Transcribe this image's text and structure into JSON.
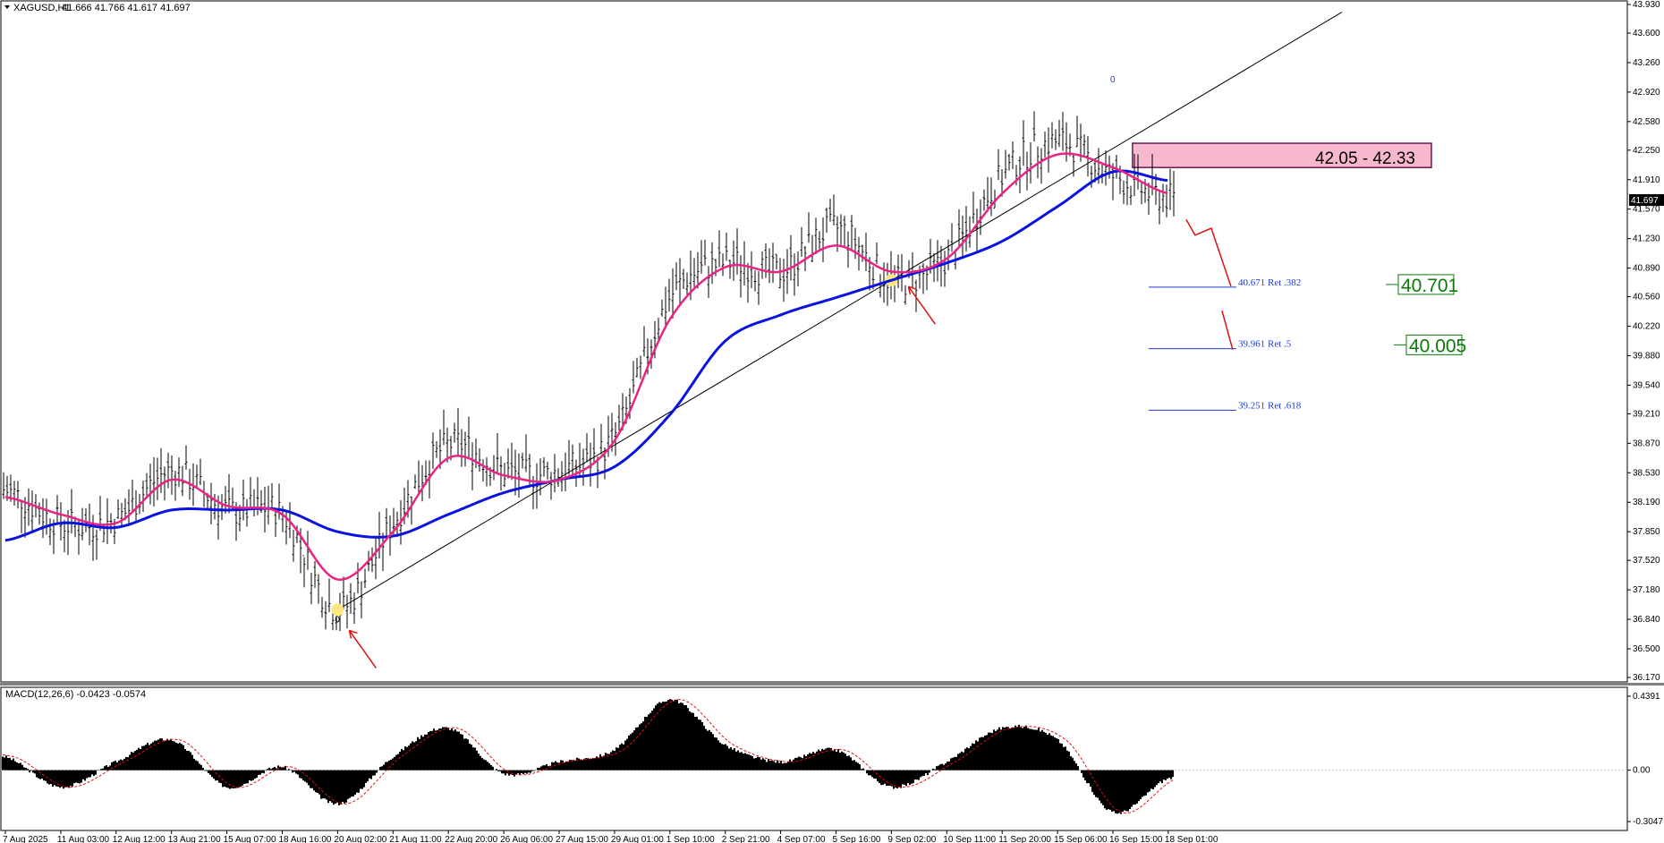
{
  "header": {
    "symbol": "XAGUSD,H1",
    "ohlc": "41.666 41.766 41.617 41.697",
    "dropdown_icon": "triangle-down-icon"
  },
  "colors": {
    "price_bars": "#000000",
    "ema_fast": "#ea2385",
    "ma_slow": "#0a14e0",
    "fib_lines": "#1f3bd6",
    "projection": "#e01010",
    "zone_fill": "#f6b7cf",
    "zone_border": "#6a1a55",
    "level_text": "#0a7a0a",
    "swing_marker": "#ffe680"
  },
  "chart_data": [
    {
      "type": "line",
      "pane": "main",
      "symbol": "XAGUSD",
      "timeframe": "H1",
      "ylim": [
        36.17,
        43.93
      ],
      "y_ticks": [
        "43.930",
        "43.600",
        "43.260",
        "42.920",
        "42.580",
        "42.250",
        "41.910",
        "41.570",
        "41.230",
        "40.890",
        "40.560",
        "40.220",
        "39.880",
        "39.540",
        "39.210",
        "38.870",
        "38.530",
        "38.190",
        "37.850",
        "37.520",
        "37.180",
        "36.840",
        "36.500",
        "36.170"
      ],
      "x_ticks": [
        "7 Aug 2025",
        "11 Aug 03:00",
        "12 Aug 12:00",
        "13 Aug 21:00",
        "15 Aug 07:00",
        "18 Aug 16:00",
        "20 Aug 02:00",
        "21 Aug 11:00",
        "22 Aug 20:00",
        "26 Aug 06:00",
        "27 Aug 15:00",
        "29 Aug 01:00",
        "1 Sep 10:00",
        "2 Sep 21:00",
        "4 Sep 07:00",
        "5 Sep 16:00",
        "9 Sep 02:00",
        "10 Sep 11:00",
        "11 Sep 20:00",
        "15 Sep 06:00",
        "16 Sep 15:00",
        "18 Sep 01:00"
      ],
      "current_price_label": "41.697",
      "series": [
        {
          "x": [
            "7 Aug 2025",
            "11 Aug 03:00",
            "12 Aug 12:00",
            "13 Aug 21:00",
            "15 Aug 07:00",
            "18 Aug 16:00",
            "20 Aug 02:00",
            "21 Aug 11:00",
            "22 Aug 20:00",
            "26 Aug 06:00",
            "27 Aug 15:00",
            "29 Aug 01:00",
            "1 Sep 10:00",
            "2 Sep 21:00",
            "4 Sep 07:00",
            "5 Sep 16:00",
            "9 Sep 02:00",
            "10 Sep 11:00",
            "11 Sep 20:00",
            "15 Sep 06:00",
            "16 Sep 15:00",
            "18 Sep 01:00"
          ],
          "values": [
            38.33,
            37.95,
            38.0,
            38.55,
            38.1,
            38.05,
            36.95,
            37.95,
            38.85,
            38.55,
            38.55,
            38.95,
            40.55,
            40.95,
            40.85,
            41.35,
            40.75,
            41.0,
            41.95,
            42.35,
            41.95,
            41.7
          ]
        },
        {
          "x": [
            "7 Aug 2025",
            "11 Aug 03:00",
            "12 Aug 12:00",
            "13 Aug 21:00",
            "15 Aug 07:00",
            "18 Aug 16:00",
            "20 Aug 02:00",
            "21 Aug 11:00",
            "22 Aug 20:00",
            "26 Aug 06:00",
            "27 Aug 15:00",
            "29 Aug 01:00",
            "1 Sep 10:00",
            "2 Sep 21:00",
            "4 Sep 07:00",
            "5 Sep 16:00",
            "9 Sep 02:00",
            "10 Sep 11:00",
            "11 Sep 20:00",
            "15 Sep 06:00",
            "16 Sep 15:00",
            "18 Sep 01:00"
          ],
          "values": [
            38.25,
            38.05,
            37.95,
            38.45,
            38.15,
            38.05,
            37.3,
            37.85,
            38.7,
            38.5,
            38.45,
            38.9,
            40.3,
            40.9,
            40.85,
            41.15,
            40.85,
            41.0,
            41.75,
            42.2,
            42.05,
            41.75
          ]
        },
        {
          "x": [
            "7 Aug 2025",
            "11 Aug 03:00",
            "12 Aug 12:00",
            "13 Aug 21:00",
            "15 Aug 07:00",
            "18 Aug 16:00",
            "20 Aug 02:00",
            "21 Aug 11:00",
            "22 Aug 20:00",
            "26 Aug 06:00",
            "27 Aug 15:00",
            "29 Aug 01:00",
            "1 Sep 10:00",
            "2 Sep 21:00",
            "4 Sep 07:00",
            "5 Sep 16:00",
            "9 Sep 02:00",
            "10 Sep 11:00",
            "11 Sep 20:00",
            "15 Sep 06:00",
            "16 Sep 15:00",
            "18 Sep 01:00"
          ],
          "values": [
            37.75,
            37.95,
            37.9,
            38.1,
            38.1,
            38.1,
            37.85,
            37.8,
            38.05,
            38.3,
            38.45,
            38.6,
            39.2,
            40.05,
            40.35,
            40.55,
            40.75,
            40.95,
            41.2,
            41.6,
            42.0,
            41.9
          ]
        }
      ],
      "zone": {
        "low": 42.05,
        "high": 42.33,
        "label": "42.05 - 42.33"
      },
      "fibonacci": [
        {
          "value": 40.671,
          "label": "40.671 Ret .382"
        },
        {
          "value": 39.961,
          "label": "39.961 Ret .5"
        },
        {
          "value": 39.251,
          "label": "39.251 Ret .618"
        }
      ],
      "levels": [
        {
          "value": 40.701,
          "label": "40.701"
        },
        {
          "value": 40.005,
          "label": "40.005"
        }
      ],
      "trendline": {
        "from": {
          "x": "20 Aug 02:00",
          "y": 36.95
        },
        "to": {
          "x": "9 Sep 02:00",
          "y": 40.75
        }
      },
      "swing_labels": [
        {
          "x": "20 Aug 02:00",
          "y": 36.95,
          "text": "0"
        },
        {
          "x": "16 Sep 15:00",
          "y": 42.97,
          "text": "0"
        }
      ],
      "markers": [
        "arrow-up-right-icon",
        "arrow-up-right-icon"
      ]
    },
    {
      "type": "bar",
      "pane": "indicator",
      "title": "MACD(12,26,6) -0.0423 -0.0574",
      "ylim": [
        -0.3047,
        0.4391
      ],
      "y_ticks": [
        "0.4391",
        "0.00",
        "-0.3047"
      ],
      "series": [
        {
          "x": [
            "7 Aug 2025",
            "11 Aug 03:00",
            "12 Aug 12:00",
            "13 Aug 21:00",
            "15 Aug 07:00",
            "18 Aug 16:00",
            "20 Aug 02:00",
            "21 Aug 11:00",
            "22 Aug 20:00",
            "26 Aug 06:00",
            "27 Aug 15:00",
            "29 Aug 01:00",
            "1 Sep 10:00",
            "2 Sep 21:00",
            "4 Sep 07:00",
            "5 Sep 16:00",
            "9 Sep 02:00",
            "10 Sep 11:00",
            "11 Sep 20:00",
            "15 Sep 06:00",
            "16 Sep 15:00",
            "18 Sep 01:00"
          ],
          "values": [
            0.08,
            -0.1,
            0.05,
            0.18,
            -0.1,
            0.02,
            -0.2,
            0.08,
            0.25,
            -0.02,
            0.05,
            0.12,
            0.42,
            0.15,
            0.05,
            0.12,
            -0.1,
            0.05,
            0.25,
            0.18,
            -0.25,
            -0.05
          ]
        }
      ]
    }
  ]
}
